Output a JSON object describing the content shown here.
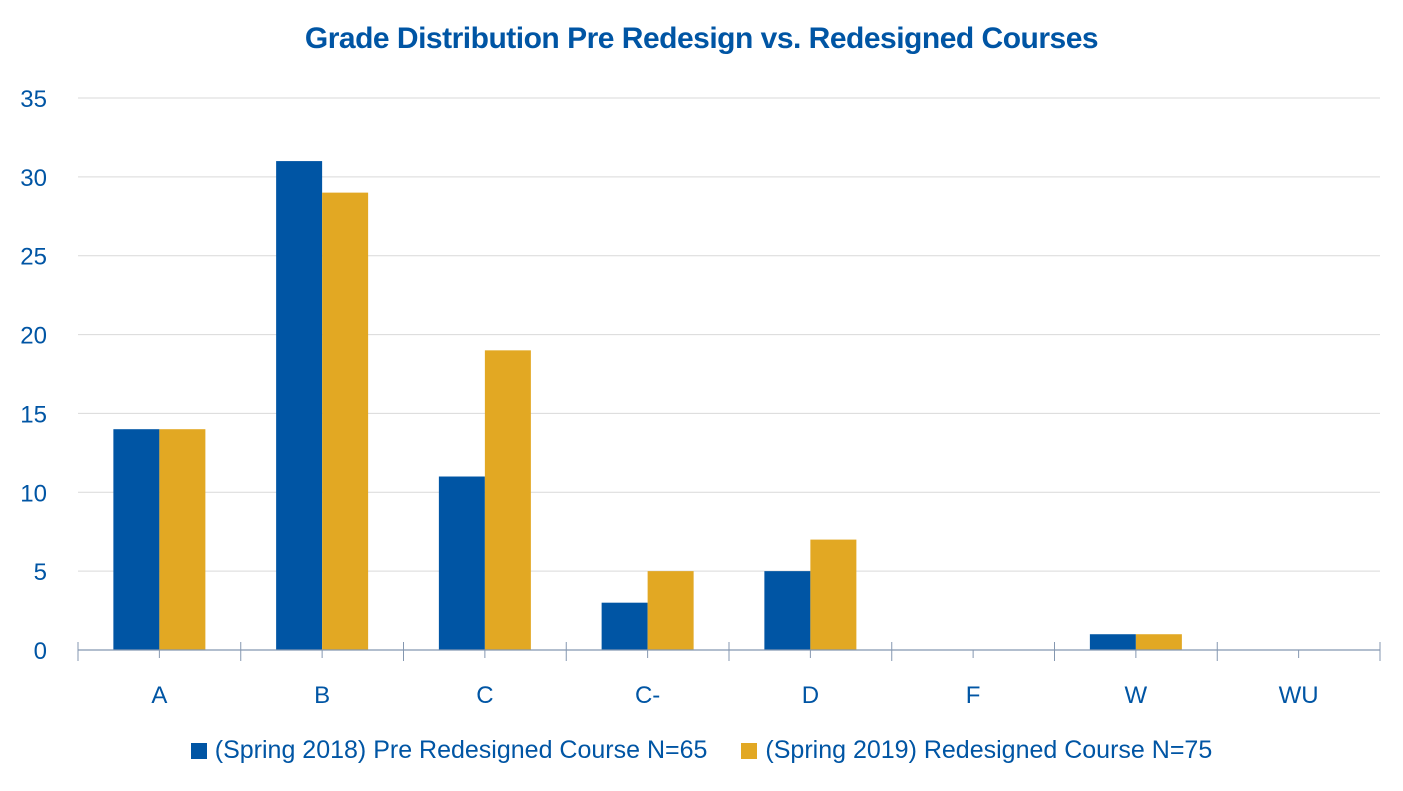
{
  "chart_data": {
    "type": "bar",
    "title": "Grade Distribution Pre Redesign vs. Redesigned Courses",
    "xlabel": "",
    "ylabel": "",
    "categories": [
      "A",
      "B",
      "C",
      "C-",
      "D",
      "F",
      "W",
      "WU"
    ],
    "series": [
      {
        "name": "(Spring 2018) Pre Redesigned Course N=65",
        "color": "#0055A4",
        "values": [
          14,
          31,
          11,
          3,
          5,
          0,
          1,
          0
        ]
      },
      {
        "name": "(Spring 2019) Redesigned Course N=75",
        "color": "#E2A823",
        "values": [
          14,
          29,
          19,
          5,
          7,
          0,
          1,
          0
        ]
      }
    ],
    "ylim": [
      0,
      35
    ],
    "yticks": [
      0,
      5,
      10,
      15,
      20,
      25,
      30,
      35
    ],
    "grid": true,
    "legend_position": "bottom"
  }
}
